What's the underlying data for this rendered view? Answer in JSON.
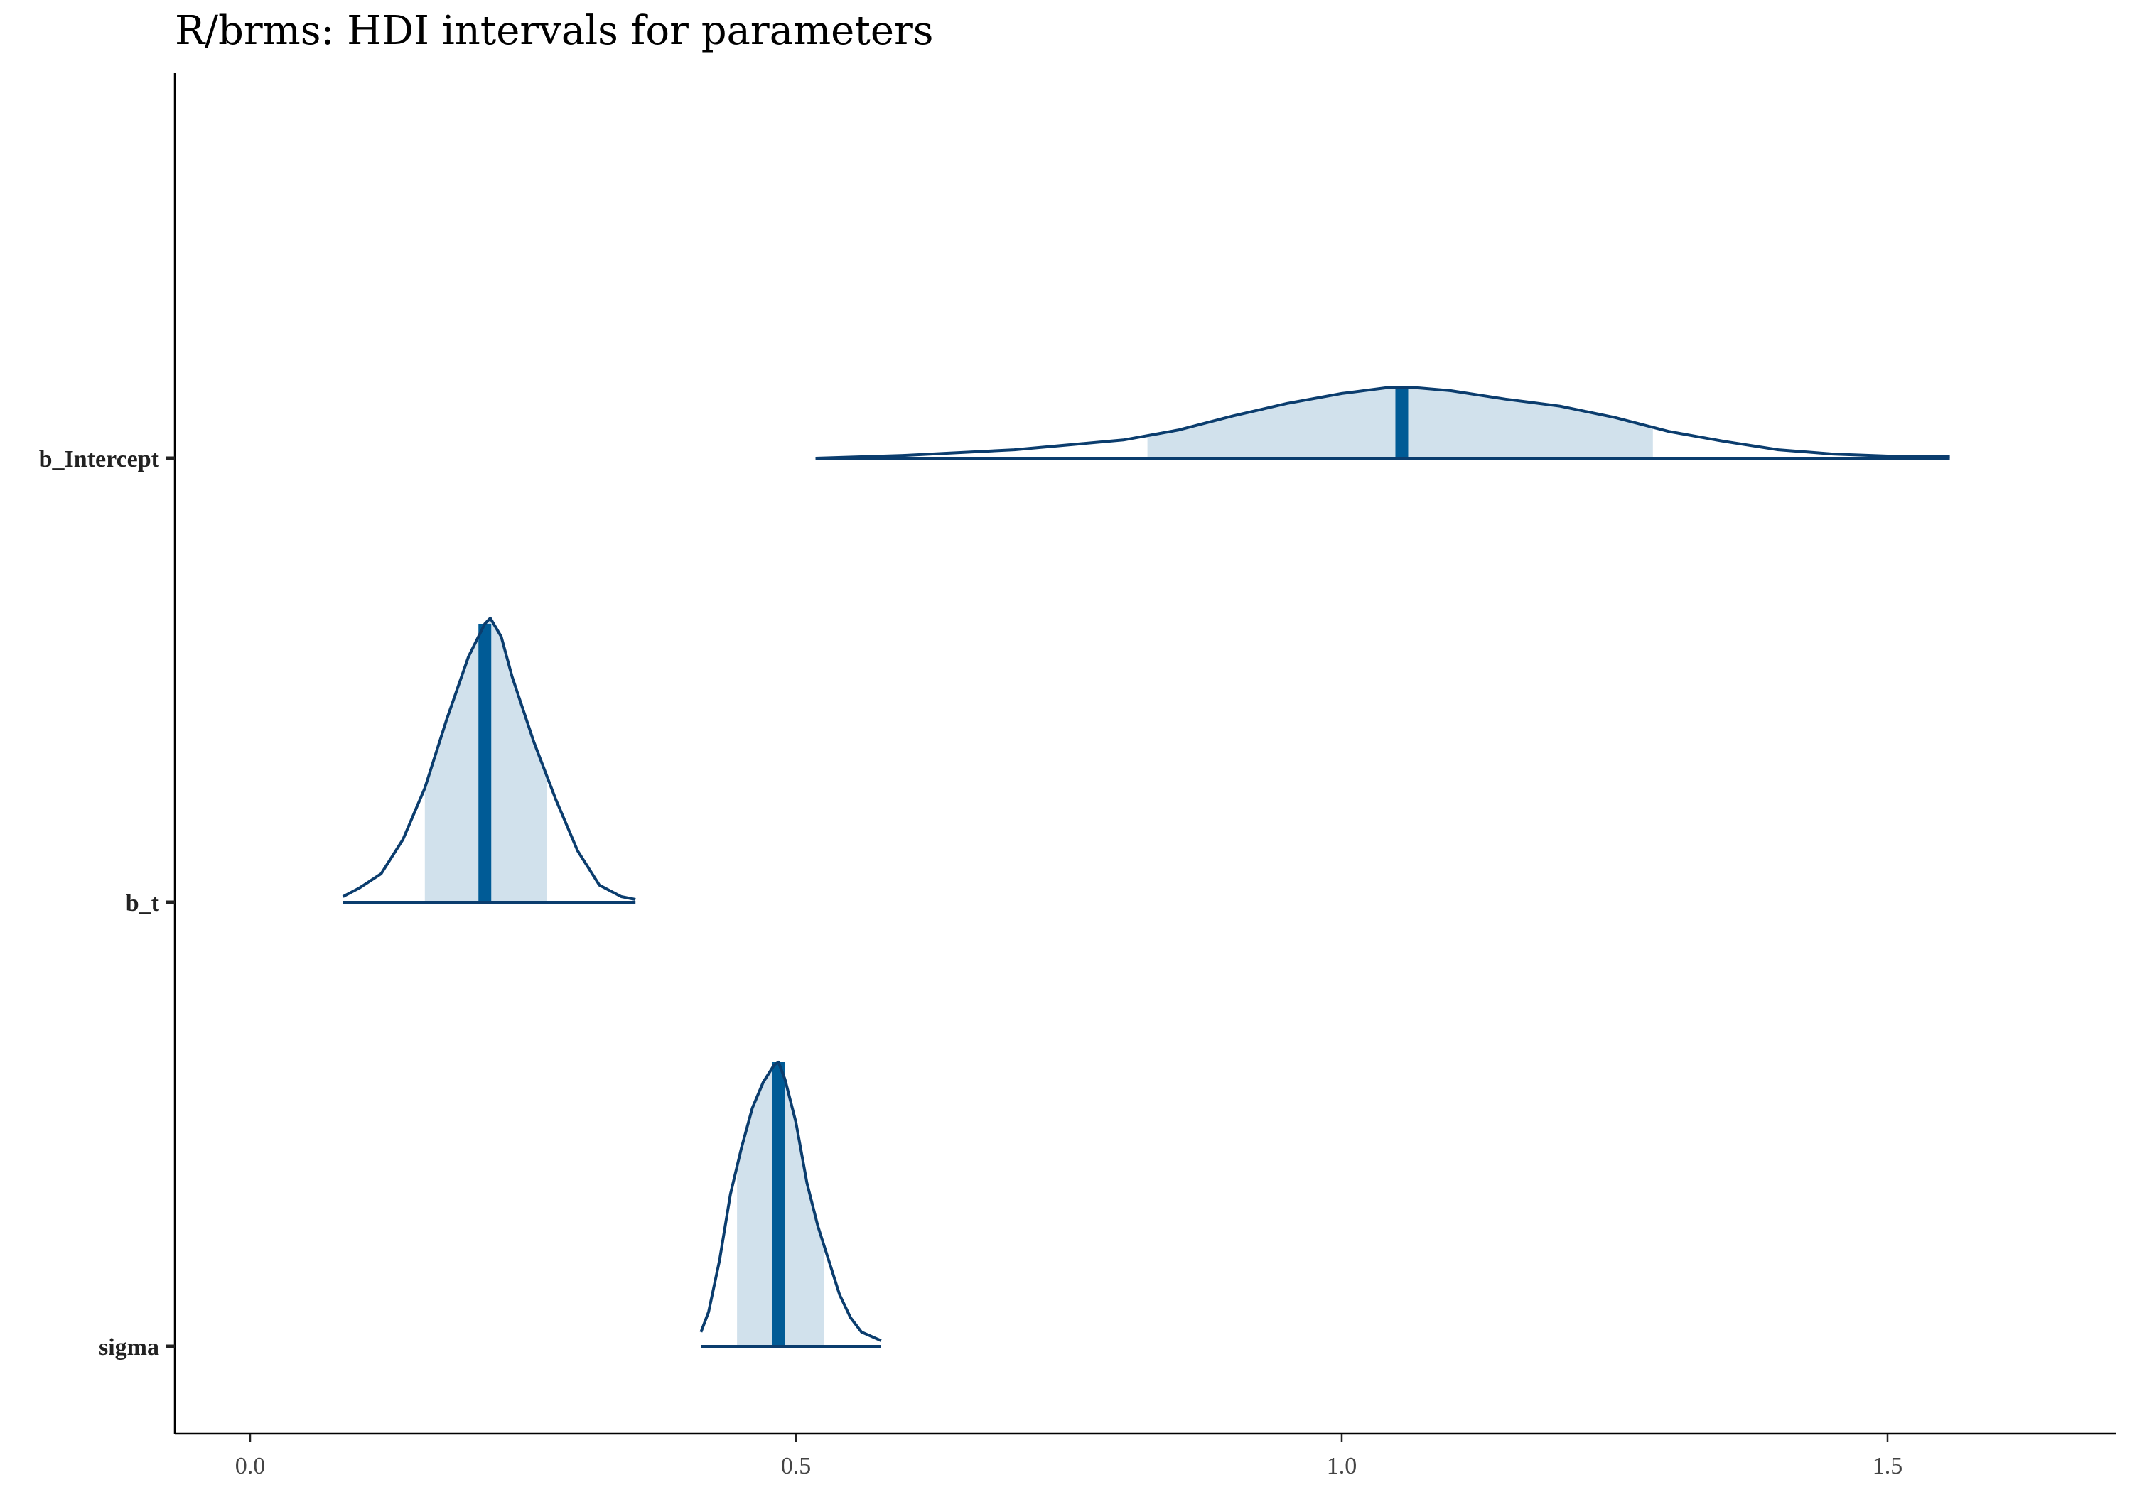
{
  "chart_data": {
    "type": "area",
    "title": "R/brms: HDI intervals for parameters",
    "xlabel": "",
    "ylabel": "",
    "xlim": [
      -0.14,
      1.72
    ],
    "x_ticks": [
      0.0,
      0.5,
      1.0,
      1.5
    ],
    "x_tick_labels": [
      "0.0",
      "0.5",
      "1.0",
      "1.5"
    ],
    "grid": false,
    "legend": "none",
    "colors": {
      "outline": "#0b3d6e",
      "hdi_fill": "#d1e1ec",
      "median": "#005b96"
    },
    "parameters": [
      {
        "name": "b_Intercept",
        "median": 1.055,
        "hdi": [
          0.822,
          1.285
        ],
        "range": [
          0.518,
          1.557
        ],
        "density": [
          [
            0.518,
            0.0
          ],
          [
            0.6,
            0.02
          ],
          [
            0.7,
            0.06
          ],
          [
            0.8,
            0.13
          ],
          [
            0.85,
            0.2
          ],
          [
            0.9,
            0.3
          ],
          [
            0.95,
            0.39
          ],
          [
            1.0,
            0.46
          ],
          [
            1.04,
            0.5
          ],
          [
            1.055,
            0.505
          ],
          [
            1.07,
            0.5
          ],
          [
            1.1,
            0.48
          ],
          [
            1.15,
            0.42
          ],
          [
            1.2,
            0.37
          ],
          [
            1.25,
            0.29
          ],
          [
            1.3,
            0.19
          ],
          [
            1.35,
            0.12
          ],
          [
            1.4,
            0.06
          ],
          [
            1.45,
            0.03
          ],
          [
            1.5,
            0.015
          ],
          [
            1.557,
            0.01
          ]
        ]
      },
      {
        "name": "b_t",
        "median": 0.215,
        "hdi": [
          0.16,
          0.272
        ],
        "range": [
          0.085,
          0.353
        ],
        "density": [
          [
            0.085,
            0.02
          ],
          [
            0.1,
            0.05
          ],
          [
            0.12,
            0.1
          ],
          [
            0.14,
            0.22
          ],
          [
            0.16,
            0.4
          ],
          [
            0.18,
            0.64
          ],
          [
            0.2,
            0.86
          ],
          [
            0.215,
            0.975
          ],
          [
            0.22,
            0.995
          ],
          [
            0.23,
            0.93
          ],
          [
            0.24,
            0.79
          ],
          [
            0.26,
            0.56
          ],
          [
            0.28,
            0.36
          ],
          [
            0.3,
            0.18
          ],
          [
            0.32,
            0.06
          ],
          [
            0.34,
            0.02
          ],
          [
            0.353,
            0.01
          ]
        ]
      },
      {
        "name": "sigma",
        "median": 0.484,
        "hdi": [
          0.446,
          0.526
        ],
        "range": [
          0.413,
          0.578
        ],
        "density": [
          [
            0.413,
            0.05
          ],
          [
            0.42,
            0.12
          ],
          [
            0.43,
            0.3
          ],
          [
            0.44,
            0.53
          ],
          [
            0.45,
            0.69
          ],
          [
            0.46,
            0.83
          ],
          [
            0.47,
            0.92
          ],
          [
            0.48,
            0.98
          ],
          [
            0.484,
            0.99
          ],
          [
            0.49,
            0.93
          ],
          [
            0.5,
            0.78
          ],
          [
            0.51,
            0.57
          ],
          [
            0.52,
            0.42
          ],
          [
            0.53,
            0.3
          ],
          [
            0.54,
            0.18
          ],
          [
            0.55,
            0.1
          ],
          [
            0.56,
            0.05
          ],
          [
            0.578,
            0.02
          ]
        ]
      }
    ]
  }
}
